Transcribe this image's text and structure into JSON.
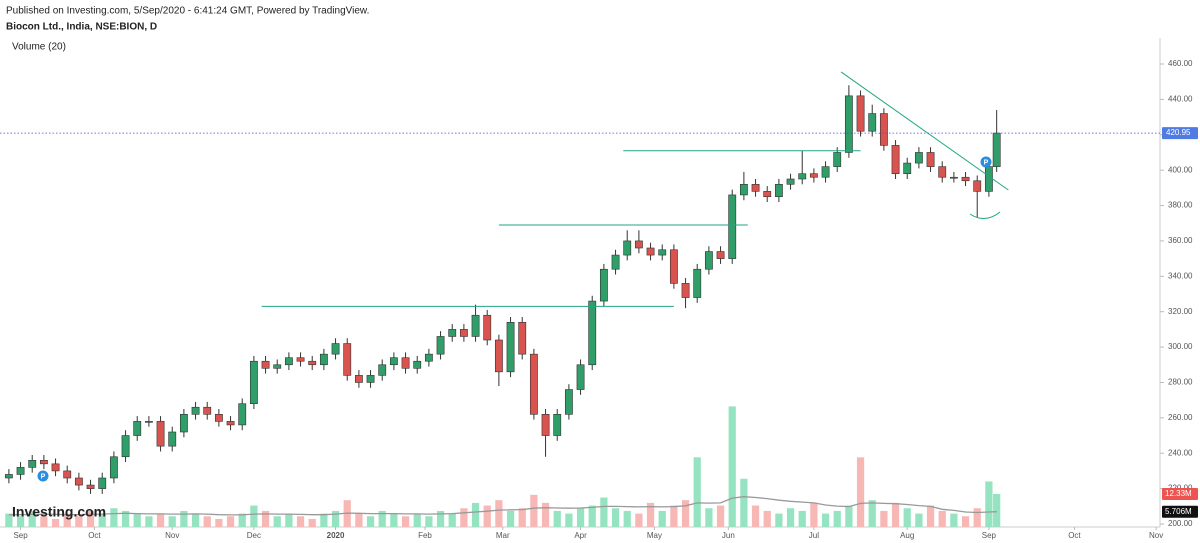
{
  "published": "Published on Investing.com, 5/Sep/2020 - 6:41:24 GMT, Powered by TradingView.",
  "logo": "Investing.com",
  "event_markers": [
    {
      "label": "P"
    },
    {
      "label": "P"
    }
  ],
  "chart_data": {
    "type": "candlestick",
    "title": "Biocon Ltd., India, NSE:BION, D",
    "volume_legend": "Volume (20)",
    "up_color": "#2f9e69",
    "down_color": "#d9534f",
    "volume_up_color": "#95e3c1",
    "volume_down_color": "#f6b7b5",
    "volume_ma_color": "#999999",
    "price_line_color": "#3f51d8",
    "trend_line_color": "#22a584",
    "x": [
      0,
      3,
      6,
      9,
      12,
      15,
      18,
      21,
      24,
      27,
      30,
      33,
      36,
      39,
      42,
      45,
      48,
      51,
      54,
      57,
      60,
      63,
      66,
      69,
      72,
      75,
      78,
      81,
      84,
      87,
      90,
      93,
      96,
      99,
      102,
      105,
      108,
      111,
      114,
      117,
      120,
      123,
      126,
      129,
      132,
      135,
      138,
      141,
      144,
      147,
      150,
      153,
      156,
      159,
      162,
      165,
      168,
      171,
      174,
      177,
      180,
      183,
      186,
      189,
      192,
      195,
      198,
      201,
      204,
      207,
      210,
      213,
      216,
      219,
      222,
      225,
      228,
      231,
      234,
      237,
      240,
      243,
      246,
      249,
      252,
      254
    ],
    "open": [
      226,
      228,
      232,
      236,
      234,
      230,
      226,
      222,
      220,
      226,
      238,
      250,
      258,
      258,
      244,
      252,
      262,
      266,
      262,
      258,
      256,
      268,
      292,
      288,
      290,
      294,
      292,
      290,
      296,
      302,
      284,
      280,
      284,
      290,
      294,
      288,
      292,
      296,
      306,
      310,
      306,
      318,
      304,
      286,
      314,
      296,
      262,
      250,
      262,
      276,
      290,
      326,
      344,
      352,
      360,
      356,
      352,
      355,
      336,
      328,
      344,
      354,
      350,
      386,
      392,
      388,
      385,
      392,
      395,
      398,
      396,
      402,
      410,
      442,
      422,
      432,
      414,
      398,
      404,
      410,
      402,
      396,
      396,
      394,
      388,
      402
    ],
    "high": [
      231,
      235,
      239,
      239,
      237,
      233,
      229,
      225,
      229,
      241,
      253,
      261,
      261,
      261,
      255,
      265,
      269,
      269,
      265,
      261,
      271,
      295,
      295,
      293,
      297,
      297,
      295,
      299,
      305,
      305,
      287,
      287,
      293,
      297,
      297,
      295,
      299,
      309,
      313,
      313,
      324,
      321,
      307,
      317,
      317,
      299,
      265,
      265,
      279,
      293,
      329,
      347,
      355,
      366,
      366,
      359,
      358,
      358,
      339,
      347,
      357,
      357,
      389,
      399,
      395,
      391,
      395,
      398,
      411,
      401,
      405,
      413,
      448,
      445,
      437,
      435,
      417,
      407,
      413,
      413,
      405,
      399,
      399,
      397,
      405,
      434
    ],
    "low": [
      223,
      225,
      229,
      231,
      227,
      223,
      219,
      217,
      217,
      223,
      235,
      247,
      255,
      241,
      241,
      249,
      259,
      259,
      255,
      253,
      253,
      265,
      285,
      285,
      287,
      289,
      287,
      287,
      293,
      281,
      277,
      277,
      281,
      287,
      285,
      285,
      289,
      293,
      303,
      303,
      303,
      301,
      278,
      283,
      293,
      259,
      238,
      247,
      259,
      273,
      287,
      323,
      341,
      349,
      353,
      349,
      349,
      333,
      322,
      325,
      341,
      347,
      347,
      383,
      385,
      382,
      382,
      389,
      392,
      393,
      393,
      399,
      407,
      419,
      419,
      411,
      395,
      395,
      401,
      399,
      393,
      393,
      391,
      373,
      385,
      399
    ],
    "close": [
      228,
      232,
      236,
      234,
      230,
      226,
      222,
      220,
      226,
      238,
      250,
      258,
      258,
      244,
      252,
      262,
      266,
      262,
      258,
      256,
      268,
      292,
      288,
      290,
      294,
      292,
      290,
      296,
      302,
      284,
      280,
      284,
      290,
      294,
      288,
      292,
      296,
      306,
      310,
      306,
      318,
      304,
      286,
      314,
      296,
      262,
      250,
      262,
      276,
      290,
      326,
      344,
      352,
      360,
      356,
      352,
      355,
      336,
      328,
      344,
      354,
      350,
      386,
      392,
      388,
      385,
      392,
      395,
      398,
      396,
      402,
      410,
      442,
      422,
      432,
      414,
      398,
      404,
      410,
      402,
      396,
      396,
      394,
      388,
      402,
      420.95
    ],
    "volume": [
      5,
      4,
      6,
      4,
      3,
      5,
      4,
      6,
      5,
      7,
      6,
      5,
      4,
      5,
      4,
      6,
      5,
      4,
      3,
      4,
      5,
      8,
      6,
      4,
      5,
      4,
      3,
      5,
      6,
      10,
      5,
      4,
      6,
      5,
      4,
      5,
      4,
      6,
      5,
      7,
      9,
      8,
      10,
      6,
      7,
      12,
      9,
      6,
      5,
      7,
      8,
      11,
      7,
      6,
      5,
      9,
      6,
      8,
      10,
      26,
      7,
      8,
      45,
      18,
      8,
      6,
      5,
      7,
      6,
      9,
      5,
      6,
      8,
      26,
      10,
      6,
      9,
      7,
      5,
      8,
      6,
      5,
      4,
      7,
      17,
      12.33
    ],
    "volume_ma": [
      4.5,
      4.6,
      4.7,
      4.8,
      4.7,
      4.6,
      4.6,
      4.7,
      4.8,
      5.0,
      5.1,
      5.0,
      4.9,
      4.9,
      4.8,
      4.8,
      4.9,
      4.8,
      4.6,
      4.5,
      4.5,
      4.8,
      4.9,
      4.8,
      4.8,
      4.7,
      4.6,
      4.6,
      4.8,
      5.2,
      5.1,
      5.0,
      5.0,
      5.0,
      4.9,
      4.9,
      4.8,
      4.9,
      5.0,
      5.3,
      5.6,
      5.9,
      6.3,
      6.4,
      6.5,
      7.0,
      7.2,
      7.1,
      7.0,
      7.1,
      7.3,
      7.7,
      7.7,
      7.6,
      7.5,
      7.6,
      7.5,
      7.6,
      7.9,
      9.0,
      8.9,
      9.0,
      10.8,
      11.3,
      11.0,
      10.6,
      10.0,
      9.6,
      9.3,
      9.0,
      8.2,
      7.8,
      7.6,
      8.8,
      9.0,
      8.8,
      8.7,
      8.4,
      8.0,
      7.7,
      6.6,
      6.2,
      5.6,
      5.4,
      5.6,
      5.706
    ],
    "last_volume_label": "12.33M",
    "volume_ma_label": "5.706M",
    "trend_lines": [
      {
        "x": [
          65,
          171
        ],
        "y": [
          323,
          323
        ]
      },
      {
        "x": [
          126,
          190
        ],
        "y": [
          369,
          369
        ]
      },
      {
        "x": [
          158,
          219
        ],
        "y": [
          411,
          411
        ]
      },
      {
        "x": [
          214,
          257
        ],
        "y": [
          455.5,
          388.8
        ]
      }
    ],
    "xlim": [
      -1,
      296
    ],
    "ylim": [
      198.3,
      474.7
    ],
    "xticks": [
      {
        "value": 3,
        "label": "Sep"
      },
      {
        "value": 22,
        "label": "Oct"
      },
      {
        "value": 42,
        "label": "Nov"
      },
      {
        "value": 63,
        "label": "Dec"
      },
      {
        "value": 84,
        "label": "2020"
      },
      {
        "value": 107,
        "label": "Feb"
      },
      {
        "value": 127,
        "label": "Mar"
      },
      {
        "value": 147,
        "label": "Apr"
      },
      {
        "value": 166,
        "label": "May"
      },
      {
        "value": 185,
        "label": "Jun"
      },
      {
        "value": 207,
        "label": "Jul"
      },
      {
        "value": 231,
        "label": "Aug"
      },
      {
        "value": 252,
        "label": "Sep"
      },
      {
        "value": 274,
        "label": "Oct"
      },
      {
        "value": 295,
        "label": "Nov"
      }
    ],
    "yticks": [
      {
        "value": 200,
        "label": "200.00"
      },
      {
        "value": 220,
        "label": "220.00"
      },
      {
        "value": 240,
        "label": "240.00"
      },
      {
        "value": 260,
        "label": "260.00"
      },
      {
        "value": 280,
        "label": "280.00"
      },
      {
        "value": 300,
        "label": "300.00"
      },
      {
        "value": 320,
        "label": "320.00"
      },
      {
        "value": 340,
        "label": "340.00"
      },
      {
        "value": 360,
        "label": "360.00"
      },
      {
        "value": 380,
        "label": "380.00"
      },
      {
        "value": 400,
        "label": "400.00"
      },
      {
        "value": 420,
        "label": "420.00"
      },
      {
        "value": 440,
        "label": "440.00"
      },
      {
        "value": 460,
        "label": "460.00"
      }
    ]
  }
}
